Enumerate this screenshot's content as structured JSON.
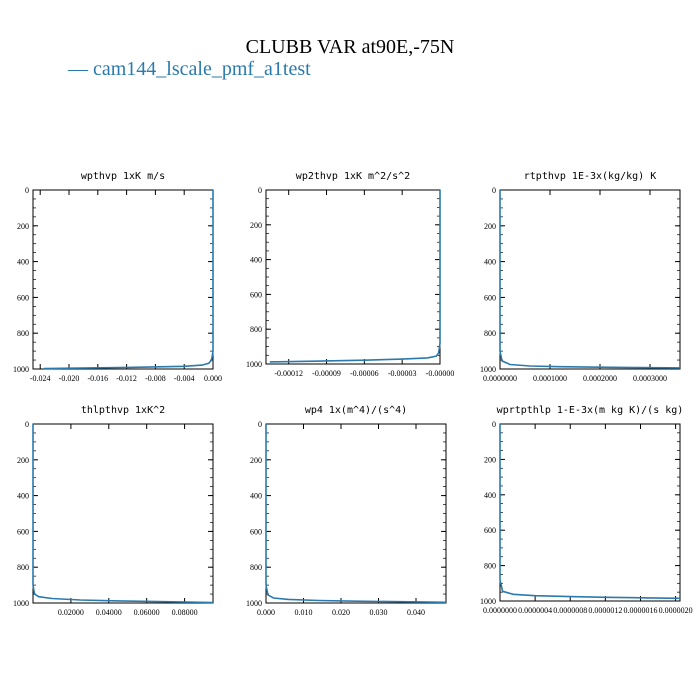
{
  "title": "CLUBB VAR at90E,-75N",
  "legend": {
    "label": "cam144_lscale_pmf_a1test",
    "color": "#2a7aae"
  },
  "chart_data": [
    {
      "type": "line",
      "title": "wpthvp  1xK m/s",
      "xlim": [
        -0.025,
        0.0
      ],
      "ylim": [
        1000,
        0
      ],
      "y_inverted": true,
      "xticks": [
        "-0.024",
        "-0.020",
        "-0.016",
        "-0.012",
        "-0.008",
        "-0.004",
        "0.000"
      ],
      "xtick_values": [
        -0.024,
        -0.02,
        -0.016,
        -0.012,
        -0.008,
        -0.004,
        0.0
      ],
      "yticks": [
        "0",
        "200",
        "400",
        "600",
        "800",
        "1000"
      ],
      "ytick_values": [
        0,
        200,
        400,
        600,
        800,
        1000
      ],
      "series": [
        {
          "color": "#2a7aae",
          "x": [
            0.0,
            0.0,
            -0.0002,
            -0.0006,
            -0.0015,
            -0.004,
            -0.01,
            -0.017,
            -0.0235
          ],
          "y": [
            0,
            900,
            950,
            968,
            978,
            985,
            990,
            994,
            997
          ]
        }
      ]
    },
    {
      "type": "line",
      "title": "wp2thvp   1xK m^2/s^2",
      "xlim": [
        -0.000138,
        0.0
      ],
      "ylim": [
        1000,
        0
      ],
      "y_inverted": true,
      "xticks": [
        "-0.00012",
        "-0.00009",
        "-0.00006",
        "-0.00003",
        "-0.00000"
      ],
      "xtick_values": [
        -0.00012,
        -9e-05,
        -6e-05,
        -3e-05,
        0.0
      ],
      "yticks": [
        "0",
        "200",
        "400",
        "600",
        "800",
        "1000"
      ],
      "ytick_values": [
        0,
        200,
        400,
        600,
        800,
        1000
      ],
      "series": [
        {
          "color": "#2a7aae",
          "x": [
            0.0,
            0.0,
            -1e-06,
            -3e-06,
            -1e-05,
            -3e-05,
            -6e-05,
            -0.0001,
            -0.000135
          ],
          "y": [
            0,
            880,
            935,
            955,
            965,
            972,
            978,
            984,
            988
          ]
        }
      ]
    },
    {
      "type": "line",
      "title": "rtpthvp   1E-3x(kg/kg) K",
      "xlim": [
        0.0,
        0.00036
      ],
      "ylim": [
        1000,
        0
      ],
      "y_inverted": true,
      "xticks": [
        "0.0000000",
        "0.0001000",
        "0.0002000",
        "0.0003000"
      ],
      "xtick_values": [
        0.0,
        0.0001,
        0.0002,
        0.0003
      ],
      "yticks": [
        "0",
        "200",
        "400",
        "600",
        "800",
        "1000"
      ],
      "ytick_values": [
        0,
        200,
        400,
        600,
        800,
        1000
      ],
      "series": [
        {
          "color": "#2a7aae",
          "x": [
            0.0,
            0.0,
            4e-06,
            2e-05,
            6e-05,
            0.00012,
            0.0002,
            0.00028,
            0.00036
          ],
          "y": [
            0,
            900,
            955,
            975,
            983,
            987,
            990,
            992,
            994
          ]
        }
      ]
    },
    {
      "type": "line",
      "title": "thlpthvp   1xK^2",
      "xlim": [
        0.0,
        0.095
      ],
      "ylim": [
        1000,
        0
      ],
      "y_inverted": true,
      "xticks": [
        "0.02000",
        "0.04000",
        "0.06000",
        "0.08000"
      ],
      "xtick_values": [
        0.02,
        0.04,
        0.06,
        0.08
      ],
      "yticks": [
        "0",
        "200",
        "400",
        "600",
        "800",
        "1000"
      ],
      "ytick_values": [
        0,
        200,
        400,
        600,
        800,
        1000
      ],
      "series": [
        {
          "color": "#2a7aae",
          "x": [
            0.0,
            0.0,
            0.0008,
            0.003,
            0.01,
            0.025,
            0.045,
            0.07,
            0.095
          ],
          "y": [
            0,
            900,
            950,
            965,
            975,
            983,
            988,
            993,
            997
          ]
        }
      ]
    },
    {
      "type": "line",
      "title": "wp4   1x(m^4)/(s^4)",
      "xlim": [
        0.0,
        0.048
      ],
      "ylim": [
        1000,
        0
      ],
      "y_inverted": true,
      "xticks": [
        "0.000",
        "0.010",
        "0.020",
        "0.030",
        "0.040"
      ],
      "xtick_values": [
        0.0,
        0.01,
        0.02,
        0.03,
        0.04
      ],
      "yticks": [
        "0",
        "200",
        "400",
        "600",
        "800",
        "1000"
      ],
      "ytick_values": [
        0,
        200,
        400,
        600,
        800,
        1000
      ],
      "series": [
        {
          "color": "#2a7aae",
          "x": [
            0.0,
            0.0,
            0.0005,
            0.002,
            0.006,
            0.014,
            0.024,
            0.036,
            0.048
          ],
          "y": [
            0,
            900,
            955,
            972,
            980,
            986,
            990,
            993,
            996
          ]
        }
      ]
    },
    {
      "type": "line",
      "title": "wprtpthlp   1-E-3x(m kg K)/(s kg)",
      "xlim": [
        0.0,
        2.05e-06
      ],
      "ylim": [
        1000,
        0
      ],
      "y_inverted": true,
      "xticks": [
        "0.0000000",
        "0.0000004",
        "0.0000008",
        "0.0000012",
        "0.0000016",
        "0.0000020"
      ],
      "xtick_values": [
        0.0,
        4e-07,
        8e-07,
        1.2e-06,
        1.6e-06,
        2e-06
      ],
      "yticks": [
        "0",
        "200",
        "400",
        "600",
        "800",
        "1000"
      ],
      "ytick_values": [
        0,
        200,
        400,
        600,
        800,
        1000
      ],
      "series": [
        {
          "color": "#2a7aae",
          "x": [
            0.0,
            0.0,
            3e-08,
            1.5e-07,
            4e-07,
            8e-07,
            1.2e-06,
            1.6e-06,
            2.05e-06
          ],
          "y": [
            0,
            880,
            945,
            962,
            970,
            975,
            979,
            982,
            985
          ]
        }
      ]
    }
  ]
}
